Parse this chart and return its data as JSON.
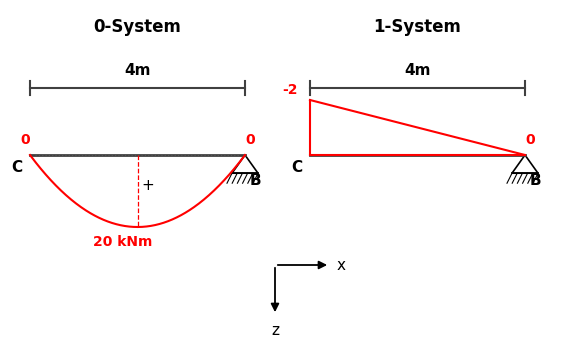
{
  "title_left": "0-System",
  "title_right": "1-System",
  "dim_label": "4m",
  "beam_color": "#404040",
  "red_color": "#FF0000",
  "axis_color": "#000000",
  "bg_color": "#FFFFFF",
  "moment_label_text": "20 kNm"
}
